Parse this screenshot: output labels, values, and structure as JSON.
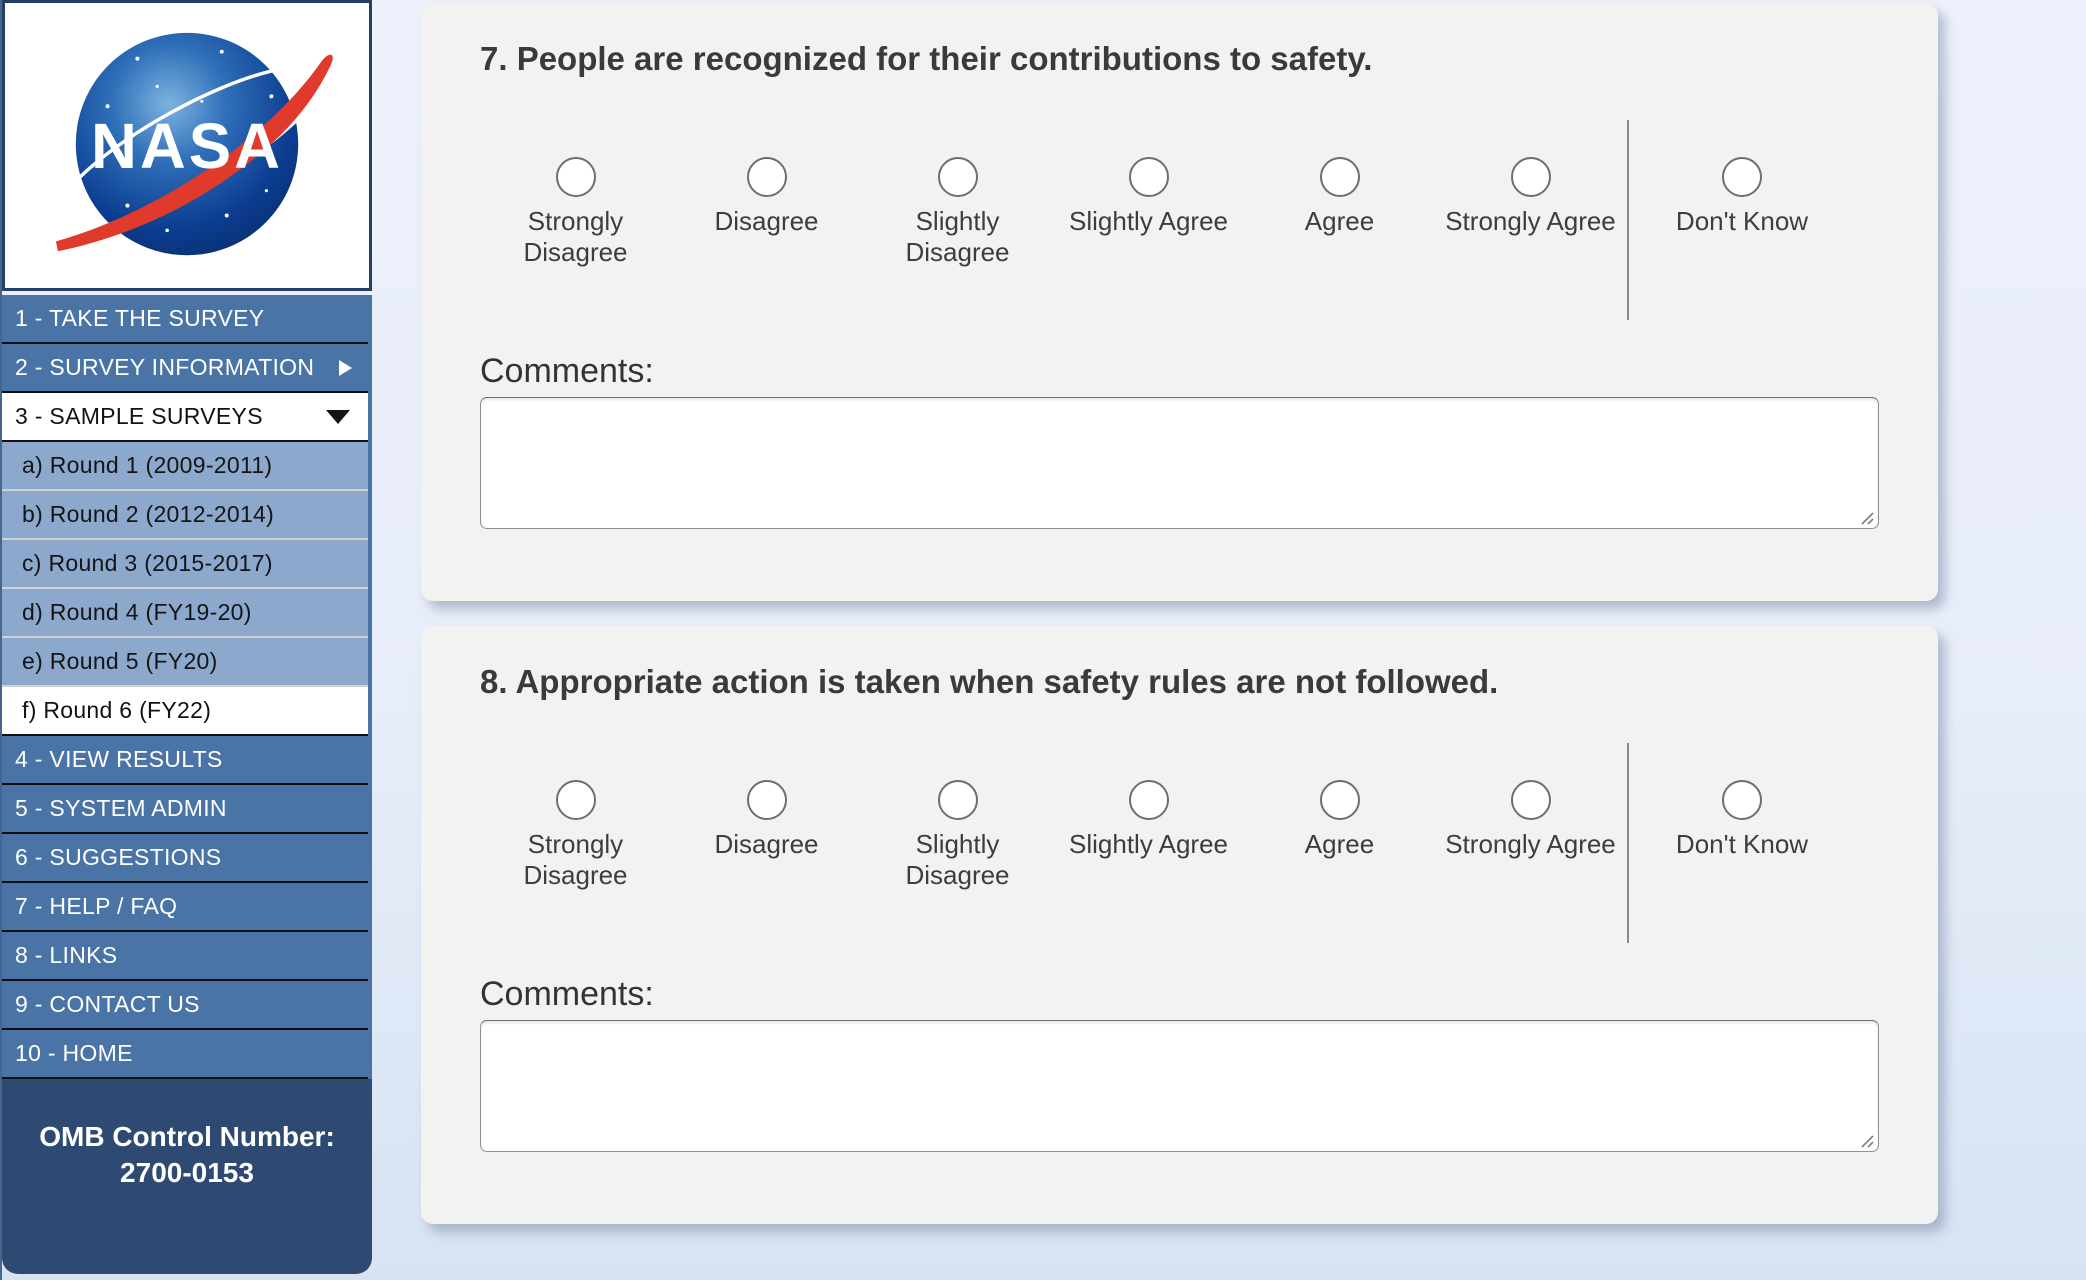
{
  "colors": {
    "page_bg": "#e9effa",
    "card_bg": "#f2f2f1",
    "menu_blue": "#4a74a6",
    "submenu_blue": "#8ca8cd",
    "footer_navy": "#2e4a72",
    "nasa_blue": "#0b3d91",
    "nasa_red": "#e03a2c",
    "radio_border": "#6e6e6e"
  },
  "sidebar": {
    "logo": {
      "text": "NASA",
      "icon": "nasa-meatball-logo"
    },
    "menu": [
      {
        "label": "1 - TAKE THE SURVEY",
        "type": "primary",
        "arrow": null
      },
      {
        "label": "2 - SURVEY INFORMATION",
        "type": "primary",
        "arrow": "right"
      },
      {
        "label": "3 - SAMPLE SURVEYS",
        "type": "selected",
        "arrow": "down"
      },
      {
        "label": "a) Round 1 (2009-2011)",
        "type": "sub",
        "arrow": null
      },
      {
        "label": "b) Round 2 (2012-2014)",
        "type": "sub",
        "arrow": null
      },
      {
        "label": "c) Round 3 (2015-2017)",
        "type": "sub",
        "arrow": null
      },
      {
        "label": "d) Round 4 (FY19-20)",
        "type": "sub",
        "arrow": null
      },
      {
        "label": "e) Round 5 (FY20)",
        "type": "sub",
        "arrow": null
      },
      {
        "label": "f) Round 6 (FY22)",
        "type": "sub-selected",
        "arrow": null
      },
      {
        "label": "4 - VIEW RESULTS",
        "type": "primary",
        "arrow": null
      },
      {
        "label": "5 - SYSTEM ADMIN",
        "type": "primary",
        "arrow": null
      },
      {
        "label": "6 - SUGGESTIONS",
        "type": "primary",
        "arrow": null
      },
      {
        "label": "7 - HELP / FAQ",
        "type": "primary",
        "arrow": null
      },
      {
        "label": "8 - LINKS",
        "type": "primary",
        "arrow": null
      },
      {
        "label": "9 - CONTACT US",
        "type": "primary",
        "arrow": null
      },
      {
        "label": "10 - HOME",
        "type": "primary",
        "arrow": null
      }
    ],
    "footer": {
      "line1": "OMB Control Number:",
      "line2": "2700-0153"
    }
  },
  "survey": {
    "comments_label": "Comments:",
    "scale_options": [
      "Strongly Disagree",
      "Disagree",
      "Slightly Disagree",
      "Slightly Agree",
      "Agree",
      "Strongly Agree"
    ],
    "extra_option": "Don't Know",
    "questions": [
      {
        "number": "7",
        "text": "7. People are recognized for their contributions to safety.",
        "selected_option": null,
        "comments_value": ""
      },
      {
        "number": "8",
        "text": "8. Appropriate action is taken when safety rules are not followed.",
        "selected_option": null,
        "comments_value": ""
      }
    ]
  }
}
